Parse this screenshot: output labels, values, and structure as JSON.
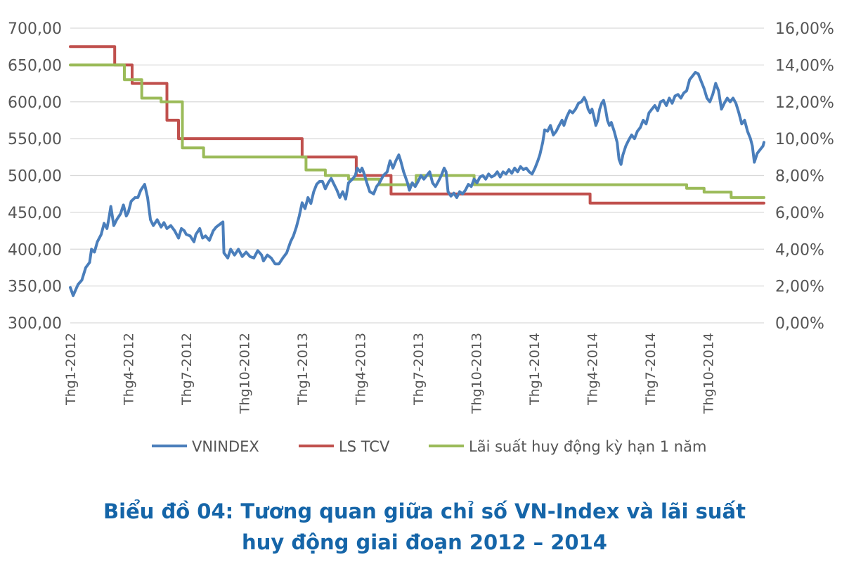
{
  "chart_data": {
    "type": "line",
    "title": "Biểu đồ 04: Tương quan giữa chỉ số VN-Index và lãi suất huy động giai đoạn 2012 – 2014",
    "left_axis": {
      "min": 300,
      "max": 700,
      "ticks": [
        "300,00",
        "350,00",
        "400,00",
        "450,00",
        "500,00",
        "550,00",
        "600,00",
        "650,00",
        "700,00"
      ]
    },
    "right_axis": {
      "min": 0,
      "max": 16,
      "ticks": [
        "0,00%",
        "2,00%",
        "4,00%",
        "6,00%",
        "8,00%",
        "10,00%",
        "12,00%",
        "14,00%",
        "16,00%"
      ]
    },
    "x_range": [
      0,
      35.9
    ],
    "x_ticks": [
      {
        "x": 0,
        "label": "Thg1-2012"
      },
      {
        "x": 3,
        "label": "Thg4-2012"
      },
      {
        "x": 6,
        "label": "Thg7-2012"
      },
      {
        "x": 9,
        "label": "Thg10-2012"
      },
      {
        "x": 12,
        "label": "Thg1-2013"
      },
      {
        "x": 15,
        "label": "Thg4-2013"
      },
      {
        "x": 18,
        "label": "Thg7-2013"
      },
      {
        "x": 21,
        "label": "Thg10-2013"
      },
      {
        "x": 24,
        "label": "Thg1-2014"
      },
      {
        "x": 27,
        "label": "Thg4-2014"
      },
      {
        "x": 30,
        "label": "Thg7-2014"
      },
      {
        "x": 33,
        "label": "Thg10-2014"
      }
    ],
    "series": [
      {
        "name": "VNINDEX",
        "axis": "left",
        "color": "#4a7ebb",
        "step": false,
        "points": [
          [
            0,
            348
          ],
          [
            0.15,
            337
          ],
          [
            0.4,
            352
          ],
          [
            0.6,
            358
          ],
          [
            0.8,
            375
          ],
          [
            1.0,
            382
          ],
          [
            1.1,
            400
          ],
          [
            1.25,
            396
          ],
          [
            1.4,
            410
          ],
          [
            1.6,
            420
          ],
          [
            1.75,
            435
          ],
          [
            1.9,
            428
          ],
          [
            2.0,
            442
          ],
          [
            2.1,
            458
          ],
          [
            2.25,
            432
          ],
          [
            2.4,
            440
          ],
          [
            2.6,
            448
          ],
          [
            2.75,
            460
          ],
          [
            2.9,
            445
          ],
          [
            3.0,
            450
          ],
          [
            3.15,
            465
          ],
          [
            3.35,
            470
          ],
          [
            3.5,
            470
          ],
          [
            3.65,
            480
          ],
          [
            3.85,
            488
          ],
          [
            4.0,
            470
          ],
          [
            4.15,
            440
          ],
          [
            4.3,
            432
          ],
          [
            4.5,
            440
          ],
          [
            4.7,
            430
          ],
          [
            4.85,
            436
          ],
          [
            5.0,
            428
          ],
          [
            5.2,
            432
          ],
          [
            5.4,
            425
          ],
          [
            5.6,
            415
          ],
          [
            5.75,
            428
          ],
          [
            5.9,
            425
          ],
          [
            6.0,
            420
          ],
          [
            6.2,
            418
          ],
          [
            6.4,
            410
          ],
          [
            6.5,
            420
          ],
          [
            6.7,
            428
          ],
          [
            6.85,
            415
          ],
          [
            7.0,
            418
          ],
          [
            7.2,
            412
          ],
          [
            7.4,
            425
          ],
          [
            7.55,
            430
          ],
          [
            7.8,
            435
          ],
          [
            7.9,
            437
          ],
          [
            7.95,
            395
          ],
          [
            8.15,
            388
          ],
          [
            8.3,
            400
          ],
          [
            8.5,
            392
          ],
          [
            8.7,
            400
          ],
          [
            8.9,
            390
          ],
          [
            9.1,
            396
          ],
          [
            9.3,
            390
          ],
          [
            9.5,
            388
          ],
          [
            9.7,
            398
          ],
          [
            9.9,
            392
          ],
          [
            10.0,
            384
          ],
          [
            10.2,
            392
          ],
          [
            10.4,
            388
          ],
          [
            10.6,
            380
          ],
          [
            10.8,
            380
          ],
          [
            11.0,
            388
          ],
          [
            11.2,
            395
          ],
          [
            11.4,
            410
          ],
          [
            11.55,
            418
          ],
          [
            11.7,
            430
          ],
          [
            11.85,
            445
          ],
          [
            12.0,
            463
          ],
          [
            12.15,
            455
          ],
          [
            12.3,
            470
          ],
          [
            12.45,
            462
          ],
          [
            12.6,
            478
          ],
          [
            12.75,
            488
          ],
          [
            12.9,
            492
          ],
          [
            13.05,
            492
          ],
          [
            13.2,
            482
          ],
          [
            13.35,
            490
          ],
          [
            13.5,
            496
          ],
          [
            13.65,
            488
          ],
          [
            13.8,
            480
          ],
          [
            13.95,
            470
          ],
          [
            14.1,
            478
          ],
          [
            14.25,
            468
          ],
          [
            14.4,
            490
          ],
          [
            14.6,
            495
          ],
          [
            14.75,
            500
          ],
          [
            14.85,
            510
          ],
          [
            15.0,
            505
          ],
          [
            15.1,
            510
          ],
          [
            15.2,
            503
          ],
          [
            15.35,
            490
          ],
          [
            15.5,
            478
          ],
          [
            15.7,
            475
          ],
          [
            15.85,
            485
          ],
          [
            16.0,
            490
          ],
          [
            16.2,
            500
          ],
          [
            16.4,
            505
          ],
          [
            16.55,
            520
          ],
          [
            16.7,
            510
          ],
          [
            16.85,
            520
          ],
          [
            17.0,
            528
          ],
          [
            17.1,
            520
          ],
          [
            17.25,
            505
          ],
          [
            17.45,
            490
          ],
          [
            17.55,
            480
          ],
          [
            17.7,
            490
          ],
          [
            17.85,
            485
          ],
          [
            18.0,
            492
          ],
          [
            18.15,
            500
          ],
          [
            18.3,
            495
          ],
          [
            18.45,
            500
          ],
          [
            18.6,
            505
          ],
          [
            18.75,
            490
          ],
          [
            18.9,
            485
          ],
          [
            19.05,
            492
          ],
          [
            19.2,
            500
          ],
          [
            19.35,
            510
          ],
          [
            19.45,
            505
          ],
          [
            19.55,
            478
          ],
          [
            19.7,
            472
          ],
          [
            19.85,
            476
          ],
          [
            20.0,
            470
          ],
          [
            20.15,
            478
          ],
          [
            20.3,
            475
          ],
          [
            20.45,
            480
          ],
          [
            20.6,
            488
          ],
          [
            20.75,
            485
          ],
          [
            20.9,
            495
          ],
          [
            21.05,
            490
          ],
          [
            21.2,
            498
          ],
          [
            21.35,
            500
          ],
          [
            21.5,
            495
          ],
          [
            21.65,
            502
          ],
          [
            21.8,
            498
          ],
          [
            21.95,
            500
          ],
          [
            22.1,
            505
          ],
          [
            22.25,
            498
          ],
          [
            22.4,
            505
          ],
          [
            22.55,
            502
          ],
          [
            22.7,
            508
          ],
          [
            22.85,
            503
          ],
          [
            23.0,
            510
          ],
          [
            23.15,
            505
          ],
          [
            23.3,
            512
          ],
          [
            23.45,
            508
          ],
          [
            23.6,
            510
          ],
          [
            23.75,
            505
          ],
          [
            23.9,
            502
          ],
          [
            24.05,
            510
          ],
          [
            24.2,
            520
          ],
          [
            24.3,
            528
          ],
          [
            24.45,
            545
          ],
          [
            24.55,
            562
          ],
          [
            24.7,
            560
          ],
          [
            24.85,
            568
          ],
          [
            25.0,
            555
          ],
          [
            25.15,
            560
          ],
          [
            25.3,
            568
          ],
          [
            25.45,
            575
          ],
          [
            25.55,
            568
          ],
          [
            25.7,
            580
          ],
          [
            25.85,
            588
          ],
          [
            26.0,
            585
          ],
          [
            26.15,
            590
          ],
          [
            26.3,
            598
          ],
          [
            26.45,
            600
          ],
          [
            26.6,
            606
          ],
          [
            26.7,
            600
          ],
          [
            26.8,
            590
          ],
          [
            26.9,
            585
          ],
          [
            27.0,
            590
          ],
          [
            27.1,
            580
          ],
          [
            27.2,
            568
          ],
          [
            27.3,
            575
          ],
          [
            27.4,
            590
          ],
          [
            27.5,
            598
          ],
          [
            27.6,
            602
          ],
          [
            27.7,
            590
          ],
          [
            27.8,
            575
          ],
          [
            27.9,
            568
          ],
          [
            28.0,
            572
          ],
          [
            28.15,
            560
          ],
          [
            28.3,
            545
          ],
          [
            28.4,
            522
          ],
          [
            28.5,
            515
          ],
          [
            28.6,
            528
          ],
          [
            28.75,
            540
          ],
          [
            28.9,
            548
          ],
          [
            29.05,
            555
          ],
          [
            29.2,
            550
          ],
          [
            29.35,
            560
          ],
          [
            29.5,
            565
          ],
          [
            29.65,
            575
          ],
          [
            29.8,
            570
          ],
          [
            29.95,
            585
          ],
          [
            30.1,
            590
          ],
          [
            30.25,
            595
          ],
          [
            30.4,
            588
          ],
          [
            30.55,
            600
          ],
          [
            30.7,
            602
          ],
          [
            30.85,
            595
          ],
          [
            31.0,
            605
          ],
          [
            31.15,
            598
          ],
          [
            31.3,
            608
          ],
          [
            31.45,
            610
          ],
          [
            31.6,
            605
          ],
          [
            31.75,
            612
          ],
          [
            31.9,
            615
          ],
          [
            32.05,
            630
          ],
          [
            32.2,
            635
          ],
          [
            32.35,
            640
          ],
          [
            32.5,
            638
          ],
          [
            32.65,
            628
          ],
          [
            32.8,
            618
          ],
          [
            32.95,
            605
          ],
          [
            33.1,
            600
          ],
          [
            33.25,
            610
          ],
          [
            33.4,
            625
          ],
          [
            33.55,
            615
          ],
          [
            33.7,
            590
          ],
          [
            33.85,
            598
          ],
          [
            34.0,
            605
          ],
          [
            34.15,
            600
          ],
          [
            34.3,
            605
          ],
          [
            34.45,
            598
          ],
          [
            34.6,
            585
          ],
          [
            34.75,
            570
          ],
          [
            34.9,
            575
          ],
          [
            35.05,
            560
          ],
          [
            35.2,
            550
          ],
          [
            35.3,
            540
          ],
          [
            35.4,
            518
          ],
          [
            35.55,
            530
          ],
          [
            35.7,
            535
          ],
          [
            35.85,
            540
          ],
          [
            35.9,
            545
          ]
        ]
      },
      {
        "name": "LS TCV",
        "axis": "right",
        "color": "#c0504d",
        "step": true,
        "points": [
          [
            0,
            15
          ],
          [
            2.3,
            15
          ],
          [
            2.3,
            14
          ],
          [
            3.2,
            14
          ],
          [
            3.2,
            13
          ],
          [
            5.0,
            13
          ],
          [
            5.0,
            11
          ],
          [
            5.6,
            11
          ],
          [
            5.6,
            10
          ],
          [
            12.0,
            10
          ],
          [
            12.0,
            9
          ],
          [
            14.8,
            9
          ],
          [
            14.8,
            8
          ],
          [
            16.6,
            8
          ],
          [
            16.6,
            7
          ],
          [
            26.9,
            7
          ],
          [
            26.9,
            6.5
          ],
          [
            35.9,
            6.5
          ]
        ]
      },
      {
        "name": "Lãi suất huy động kỳ hạn 1 năm",
        "axis": "right",
        "color": "#9bbb59",
        "step": true,
        "points": [
          [
            0,
            14
          ],
          [
            2.8,
            14
          ],
          [
            2.8,
            13.2
          ],
          [
            3.7,
            13.2
          ],
          [
            3.7,
            12.2
          ],
          [
            4.7,
            12.2
          ],
          [
            4.7,
            12
          ],
          [
            5.8,
            12
          ],
          [
            5.8,
            9.5
          ],
          [
            6.9,
            9.5
          ],
          [
            6.9,
            9
          ],
          [
            12.2,
            9
          ],
          [
            12.2,
            8.3
          ],
          [
            13.2,
            8.3
          ],
          [
            13.2,
            8
          ],
          [
            14.4,
            8
          ],
          [
            14.4,
            7.8
          ],
          [
            16.0,
            7.8
          ],
          [
            16.0,
            7.5
          ],
          [
            17.9,
            7.5
          ],
          [
            17.9,
            8
          ],
          [
            20.9,
            8
          ],
          [
            20.9,
            7.5
          ],
          [
            31.9,
            7.5
          ],
          [
            31.9,
            7.3
          ],
          [
            32.8,
            7.3
          ],
          [
            32.8,
            7.1
          ],
          [
            34.2,
            7.1
          ],
          [
            34.2,
            6.8
          ],
          [
            35.9,
            6.8
          ]
        ]
      }
    ],
    "legend": {
      "position": "bottom",
      "items": [
        "VNINDEX",
        "LS TCV",
        "Lãi suất huy động kỳ hạn 1 năm"
      ]
    },
    "grid": true
  },
  "caption": {
    "line1": "Biểu đồ 04: Tương quan giữa chỉ số VN-Index và lãi suất",
    "line2": "huy động giai đoạn 2012 – 2014"
  }
}
